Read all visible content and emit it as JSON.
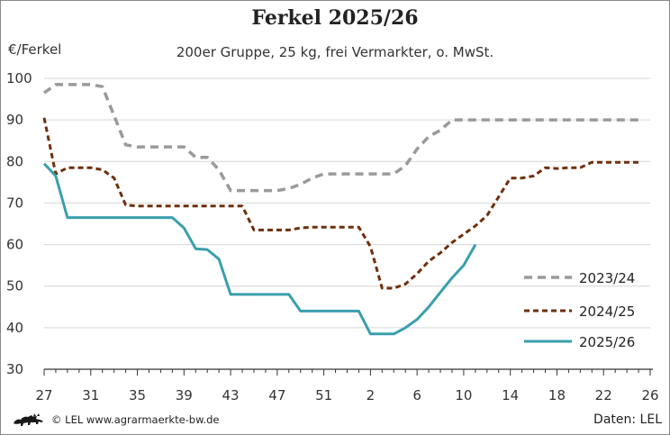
{
  "header": {
    "title": "Ferkel 2025/26",
    "subtitle": "200er Gruppe, 25 kg, frei Vermarkter, o. MwSt."
  },
  "axis": {
    "y_unit": "€/Ferkel"
  },
  "footer": {
    "copyright": "© LEL www.agrarmaerkte-bw.de",
    "source": "Daten: LEL",
    "logo_icon": "lion-logo-icon"
  },
  "chart_data": {
    "type": "line",
    "title": "Ferkel 2025/26",
    "subtitle": "200er Gruppe, 25 kg, frei Vermarkter, o. MwSt.",
    "xlabel": "",
    "ylabel": "€/Ferkel",
    "ylim": [
      30,
      100
    ],
    "yticks": [
      30,
      40,
      50,
      60,
      70,
      80,
      90,
      100
    ],
    "x_tick_labels": [
      "27",
      "31",
      "35",
      "39",
      "43",
      "47",
      "51",
      "2",
      "6",
      "10",
      "14",
      "18",
      "22",
      "26"
    ],
    "x_range_weeks": [
      27,
      26
    ],
    "grid": "horizontal",
    "legend_position": "bottom-right",
    "x_encoding": "calendar week, sequence from week 27 to week 26 of following year",
    "series": [
      {
        "name": "2023/24",
        "color": "#9a9a9a",
        "style": "dashed",
        "points": [
          {
            "week": 27,
            "value": 96.5
          },
          {
            "week": 28,
            "value": 98.5
          },
          {
            "week": 29,
            "value": 98.5
          },
          {
            "week": 30,
            "value": 98.5
          },
          {
            "week": 31,
            "value": 98.5
          },
          {
            "week": 32,
            "value": 98
          },
          {
            "week": 33,
            "value": 91
          },
          {
            "week": 34,
            "value": 84
          },
          {
            "week": 35,
            "value": 83.5
          },
          {
            "week": 36,
            "value": 83.5
          },
          {
            "week": 37,
            "value": 83.5
          },
          {
            "week": 38,
            "value": 83.5
          },
          {
            "week": 39,
            "value": 83.5
          },
          {
            "week": 40,
            "value": 81
          },
          {
            "week": 41,
            "value": 81
          },
          {
            "week": 42,
            "value": 78
          },
          {
            "week": 43,
            "value": 73
          },
          {
            "week": 44,
            "value": 73
          },
          {
            "week": 45,
            "value": 73
          },
          {
            "week": 46,
            "value": 73
          },
          {
            "week": 47,
            "value": 73
          },
          {
            "week": 48,
            "value": 73.5
          },
          {
            "week": 49,
            "value": 74.5
          },
          {
            "week": 50,
            "value": 76
          },
          {
            "week": 51,
            "value": 77
          },
          {
            "week": 52,
            "value": 77
          },
          {
            "week": 1,
            "value": 77
          },
          {
            "week": 2,
            "value": 77
          },
          {
            "week": 3,
            "value": 77
          },
          {
            "week": 4,
            "value": 77
          },
          {
            "week": 5,
            "value": 77
          },
          {
            "week": 6,
            "value": 79
          },
          {
            "week": 7,
            "value": 83
          },
          {
            "week": 8,
            "value": 86
          },
          {
            "week": 9,
            "value": 87.5
          },
          {
            "week": 10,
            "value": 90
          },
          {
            "week": 11,
            "value": 90
          },
          {
            "week": 12,
            "value": 90
          },
          {
            "week": 13,
            "value": 90
          },
          {
            "week": 14,
            "value": 90
          },
          {
            "week": 15,
            "value": 90
          },
          {
            "week": 16,
            "value": 90
          },
          {
            "week": 17,
            "value": 90
          },
          {
            "week": 18,
            "value": 90
          },
          {
            "week": 19,
            "value": 90
          },
          {
            "week": 20,
            "value": 90
          },
          {
            "week": 21,
            "value": 90
          },
          {
            "week": 22,
            "value": 90
          },
          {
            "week": 23,
            "value": 90
          },
          {
            "week": 24,
            "value": 90
          },
          {
            "week": 25,
            "value": 90
          },
          {
            "week": 26,
            "value": 90
          }
        ]
      },
      {
        "name": "2024/25",
        "color": "#6e2f0c",
        "style": "dashed",
        "points": [
          {
            "week": 27,
            "value": 90.5
          },
          {
            "week": 28,
            "value": 77
          },
          {
            "week": 29,
            "value": 78.5
          },
          {
            "week": 30,
            "value": 78.5
          },
          {
            "week": 31,
            "value": 78.5
          },
          {
            "week": 32,
            "value": 78
          },
          {
            "week": 33,
            "value": 76
          },
          {
            "week": 34,
            "value": 69.5
          },
          {
            "week": 35,
            "value": 69.3
          },
          {
            "week": 36,
            "value": 69.3
          },
          {
            "week": 37,
            "value": 69.3
          },
          {
            "week": 38,
            "value": 69.3
          },
          {
            "week": 39,
            "value": 69.3
          },
          {
            "week": 40,
            "value": 69.3
          },
          {
            "week": 41,
            "value": 69.3
          },
          {
            "week": 42,
            "value": 69.3
          },
          {
            "week": 43,
            "value": 69.3
          },
          {
            "week": 44,
            "value": 69.3
          },
          {
            "week": 45,
            "value": 63.5
          },
          {
            "week": 46,
            "value": 63.5
          },
          {
            "week": 47,
            "value": 63.5
          },
          {
            "week": 48,
            "value": 63.5
          },
          {
            "week": 49,
            "value": 64
          },
          {
            "week": 50,
            "value": 64.2
          },
          {
            "week": 51,
            "value": 64.2
          },
          {
            "week": 52,
            "value": 64.2
          },
          {
            "week": 1,
            "value": 64.2
          },
          {
            "week": 2,
            "value": 64.2
          },
          {
            "week": 3,
            "value": 59.5
          },
          {
            "week": 4,
            "value": 49.5
          },
          {
            "week": 5,
            "value": 49.5
          },
          {
            "week": 6,
            "value": 50.5
          },
          {
            "week": 7,
            "value": 53
          },
          {
            "week": 8,
            "value": 56
          },
          {
            "week": 9,
            "value": 58
          },
          {
            "week": 10,
            "value": 60.5
          },
          {
            "week": 11,
            "value": 62.5
          },
          {
            "week": 12,
            "value": 64.5
          },
          {
            "week": 13,
            "value": 67
          },
          {
            "week": 14,
            "value": 71.5
          },
          {
            "week": 15,
            "value": 76
          },
          {
            "week": 16,
            "value": 76
          },
          {
            "week": 17,
            "value": 76.5
          },
          {
            "week": 18,
            "value": 78.5
          },
          {
            "week": 19,
            "value": 78.3
          },
          {
            "week": 20,
            "value": 78.5
          },
          {
            "week": 21,
            "value": 78.5
          },
          {
            "week": 22,
            "value": 79.8
          },
          {
            "week": 23,
            "value": 79.8
          },
          {
            "week": 24,
            "value": 79.8
          },
          {
            "week": 25,
            "value": 79.8
          },
          {
            "week": 26,
            "value": 79.8
          }
        ]
      },
      {
        "name": "2025/26",
        "color": "#3a9fad",
        "style": "solid",
        "points": [
          {
            "week": 27,
            "value": 79.5
          },
          {
            "week": 28,
            "value": 76.5
          },
          {
            "week": 29,
            "value": 66.5
          },
          {
            "week": 30,
            "value": 66.5
          },
          {
            "week": 31,
            "value": 66.5
          },
          {
            "week": 32,
            "value": 66.5
          },
          {
            "week": 33,
            "value": 66.5
          },
          {
            "week": 34,
            "value": 66.5
          },
          {
            "week": 35,
            "value": 66.5
          },
          {
            "week": 36,
            "value": 66.5
          },
          {
            "week": 37,
            "value": 66.5
          },
          {
            "week": 38,
            "value": 66.5
          },
          {
            "week": 39,
            "value": 64
          },
          {
            "week": 40,
            "value": 59
          },
          {
            "week": 41,
            "value": 58.8
          },
          {
            "week": 42,
            "value": 56.5
          },
          {
            "week": 43,
            "value": 48
          },
          {
            "week": 44,
            "value": 48
          },
          {
            "week": 45,
            "value": 48
          },
          {
            "week": 46,
            "value": 48
          },
          {
            "week": 47,
            "value": 48
          },
          {
            "week": 48,
            "value": 48
          },
          {
            "week": 49,
            "value": 44
          },
          {
            "week": 50,
            "value": 44
          },
          {
            "week": 51,
            "value": 44
          },
          {
            "week": 52,
            "value": 44
          },
          {
            "week": 1,
            "value": 44
          },
          {
            "week": 2,
            "value": 44
          },
          {
            "week": 3,
            "value": 38.5
          },
          {
            "week": 4,
            "value": 38.5
          },
          {
            "week": 5,
            "value": 38.5
          },
          {
            "week": 6,
            "value": 40
          },
          {
            "week": 7,
            "value": 42
          },
          {
            "week": 8,
            "value": 45
          },
          {
            "week": 9,
            "value": 48.5
          },
          {
            "week": 10,
            "value": 52
          },
          {
            "week": 11,
            "value": 55
          },
          {
            "week": 12,
            "value": 60
          }
        ]
      }
    ]
  }
}
